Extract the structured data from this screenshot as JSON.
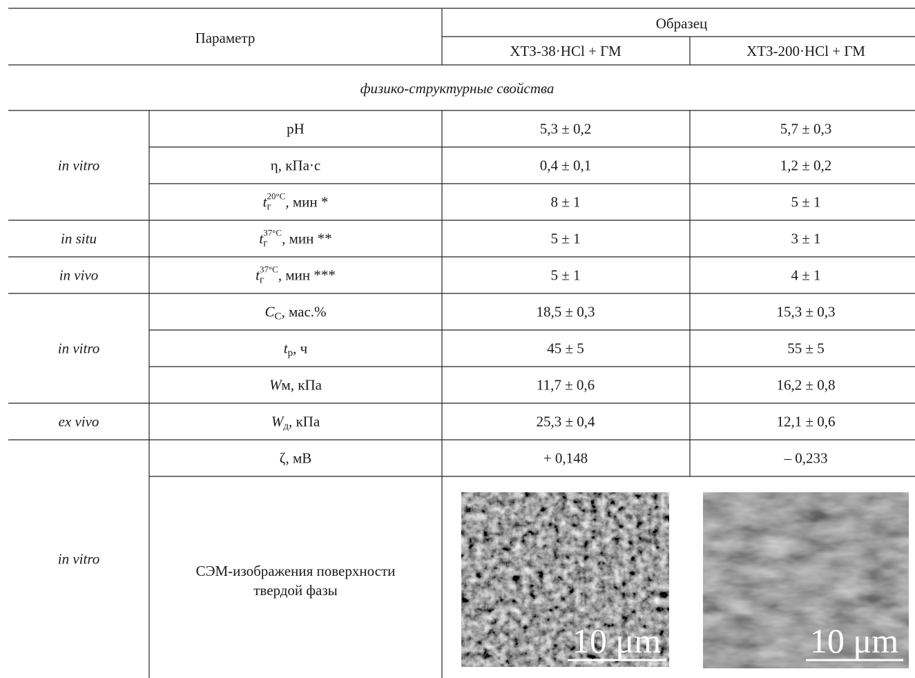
{
  "header": {
    "parameter": "Параметр",
    "sample": "Образец",
    "samples": [
      "ХТЗ-38·HCl + ГМ",
      "ХТЗ-200·HCl + ГМ"
    ]
  },
  "section": "физико-структурные свойства",
  "groups": [
    {
      "label": "in vitro",
      "rows": [
        {
          "parameter": [
            {
              "text": "pH"
            }
          ],
          "values": [
            "5,3 ± 0,2",
            "5,7 ± 0,3"
          ]
        },
        {
          "parameter": [
            {
              "text": "η, кПа·с"
            }
          ],
          "values": [
            "0,4 ± 0,1",
            "1,2 ± 0,2"
          ]
        },
        {
          "parameter": [
            {
              "italic": "t"
            },
            {
              "sub": "г"
            },
            {
              "sup": "20°C"
            },
            {
              "text": ", мин *"
            }
          ],
          "values": [
            "8 ± 1",
            "5 ± 1"
          ]
        }
      ]
    },
    {
      "label": "in situ",
      "rows": [
        {
          "parameter": [
            {
              "italic": "t"
            },
            {
              "sub": "г"
            },
            {
              "sup": "37°C"
            },
            {
              "text": ", мин **"
            }
          ],
          "values": [
            "5 ± 1",
            "3 ± 1"
          ]
        }
      ]
    },
    {
      "label": "in vivo",
      "rows": [
        {
          "parameter": [
            {
              "italic": "t"
            },
            {
              "sub": "г"
            },
            {
              "sup": "37°C"
            },
            {
              "text": ", мин ***"
            }
          ],
          "values": [
            "5 ± 1",
            "4 ± 1"
          ]
        }
      ]
    },
    {
      "label": "in vitro",
      "rows": [
        {
          "parameter": [
            {
              "italic": "C"
            },
            {
              "sub": "С"
            },
            {
              "text": ", мас.%"
            }
          ],
          "values": [
            "18,5 ± 0,3",
            "15,3 ± 0,3"
          ]
        },
        {
          "parameter": [
            {
              "italic": "t"
            },
            {
              "sub": "р"
            },
            {
              "text": ", ч"
            }
          ],
          "values": [
            "45 ± 5",
            "55 ± 5"
          ]
        },
        {
          "parameter": [
            {
              "italic": "W"
            },
            {
              "text": "м, кПа"
            }
          ],
          "values": [
            "11,7 ± 0,6",
            "16,2 ± 0,8"
          ]
        }
      ]
    },
    {
      "label": "ex vivo",
      "rows": [
        {
          "parameter": [
            {
              "italic": "W"
            },
            {
              "sub": "д"
            },
            {
              "text": ", кПа"
            }
          ],
          "values": [
            "25,3 ± 0,4",
            "12,1 ± 0,6"
          ]
        }
      ]
    },
    {
      "label": "in vitro",
      "rows": [
        {
          "parameter": [
            {
              "text": "ζ, мВ"
            }
          ],
          "values": [
            "+ 0,148",
            "– 0,233"
          ]
        },
        {
          "parameter_lines": [
            "СЭМ-изображения поверхности",
            "твердой фазы"
          ],
          "images": [
            {
              "scale_bar": "10 μm"
            },
            {
              "scale_bar": "10 μm"
            }
          ]
        }
      ]
    }
  ]
}
